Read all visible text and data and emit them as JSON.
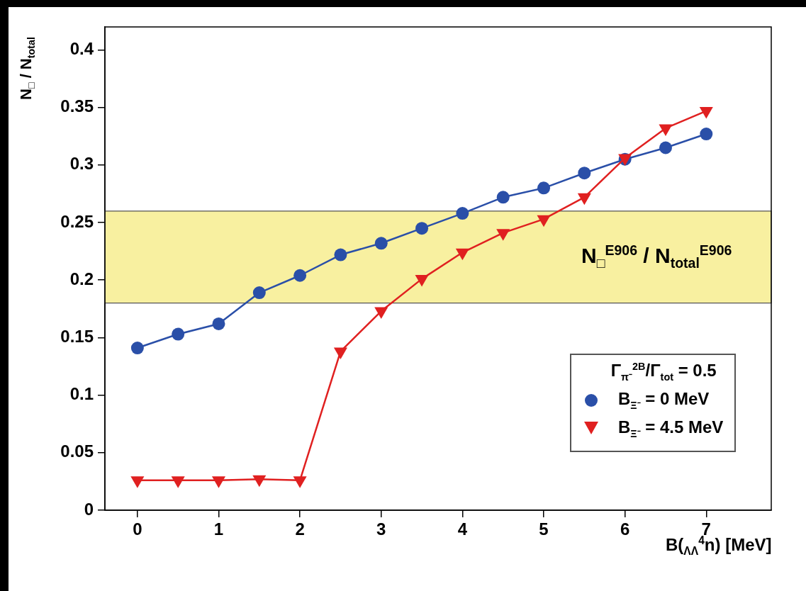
{
  "chart_data": {
    "type": "line",
    "xlabel": "B($_{ΛΛ}$$^{4}$n)   [MeV]",
    "ylabel": "N$_{□}$ / N$_{total}$",
    "legend_title": "Γ$_{π⁻}$$^{2B}$/Γ$_{tot}$ = 0.5",
    "x": [
      0,
      0.5,
      1,
      1.5,
      2,
      2.5,
      3,
      3.5,
      4,
      4.5,
      5,
      5.5,
      6,
      6.5,
      7
    ],
    "series": [
      {
        "name": "B$_{Ξ⁻}$ = 0 MeV",
        "color": "#2a4fa8",
        "marker": "circle",
        "values": [
          0.141,
          0.153,
          0.162,
          0.189,
          0.204,
          0.222,
          0.232,
          0.245,
          0.258,
          0.272,
          0.28,
          0.293,
          0.305,
          0.315,
          0.327
        ]
      },
      {
        "name": "B$_{Ξ⁻}$ = 4.5 MeV",
        "color": "#e02020",
        "marker": "triangle",
        "values": [
          0.026,
          0.026,
          0.026,
          0.027,
          0.026,
          0.138,
          0.173,
          0.201,
          0.224,
          0.241,
          0.253,
          0.272,
          0.306,
          0.332,
          0.347
        ]
      }
    ],
    "bands": [
      {
        "axis": "y",
        "from": 0.18,
        "to": 0.26,
        "label": "N$_{□}$$^{E906}$ / N$_{total}$$^{E906}$",
        "color": "#f8f0a0"
      }
    ],
    "xlim": [
      -0.4,
      7.8
    ],
    "xticks": [
      0,
      1,
      2,
      3,
      4,
      5,
      6,
      7
    ],
    "ylim": [
      0,
      0.42
    ],
    "yticks": [
      0,
      0.05,
      0.1,
      0.15,
      0.2,
      0.25,
      0.3,
      0.35,
      0.4
    ],
    "grid": false,
    "legend": "bottom right",
    "line_style": "solid"
  }
}
